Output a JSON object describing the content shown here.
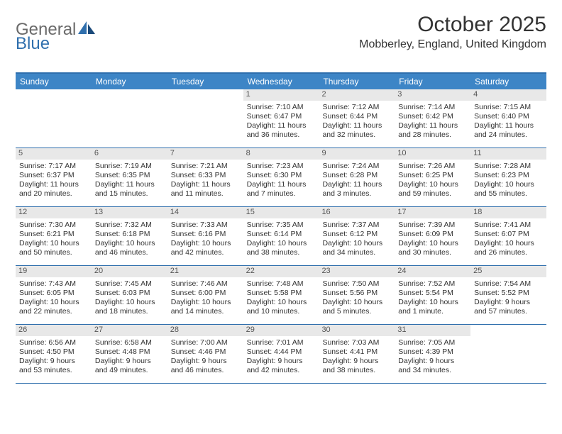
{
  "logo": {
    "general": "General",
    "blue": "Blue",
    "shape_color": "#2f6fad"
  },
  "title": "October 2025",
  "location": "Mobberley, England, United Kingdom",
  "colors": {
    "header_bg": "#3d85c6",
    "border": "#2f6fad",
    "day_num_bg": "#e8e8e8",
    "text": "#333333",
    "header_text": "#ffffff"
  },
  "day_headers": [
    "Sunday",
    "Monday",
    "Tuesday",
    "Wednesday",
    "Thursday",
    "Friday",
    "Saturday"
  ],
  "weeks": [
    [
      {
        "num": "",
        "sunrise": "",
        "sunset": "",
        "daylight": ""
      },
      {
        "num": "",
        "sunrise": "",
        "sunset": "",
        "daylight": ""
      },
      {
        "num": "",
        "sunrise": "",
        "sunset": "",
        "daylight": ""
      },
      {
        "num": "1",
        "sunrise": "Sunrise: 7:10 AM",
        "sunset": "Sunset: 6:47 PM",
        "daylight": "Daylight: 11 hours and 36 minutes."
      },
      {
        "num": "2",
        "sunrise": "Sunrise: 7:12 AM",
        "sunset": "Sunset: 6:44 PM",
        "daylight": "Daylight: 11 hours and 32 minutes."
      },
      {
        "num": "3",
        "sunrise": "Sunrise: 7:14 AM",
        "sunset": "Sunset: 6:42 PM",
        "daylight": "Daylight: 11 hours and 28 minutes."
      },
      {
        "num": "4",
        "sunrise": "Sunrise: 7:15 AM",
        "sunset": "Sunset: 6:40 PM",
        "daylight": "Daylight: 11 hours and 24 minutes."
      }
    ],
    [
      {
        "num": "5",
        "sunrise": "Sunrise: 7:17 AM",
        "sunset": "Sunset: 6:37 PM",
        "daylight": "Daylight: 11 hours and 20 minutes."
      },
      {
        "num": "6",
        "sunrise": "Sunrise: 7:19 AM",
        "sunset": "Sunset: 6:35 PM",
        "daylight": "Daylight: 11 hours and 15 minutes."
      },
      {
        "num": "7",
        "sunrise": "Sunrise: 7:21 AM",
        "sunset": "Sunset: 6:33 PM",
        "daylight": "Daylight: 11 hours and 11 minutes."
      },
      {
        "num": "8",
        "sunrise": "Sunrise: 7:23 AM",
        "sunset": "Sunset: 6:30 PM",
        "daylight": "Daylight: 11 hours and 7 minutes."
      },
      {
        "num": "9",
        "sunrise": "Sunrise: 7:24 AM",
        "sunset": "Sunset: 6:28 PM",
        "daylight": "Daylight: 11 hours and 3 minutes."
      },
      {
        "num": "10",
        "sunrise": "Sunrise: 7:26 AM",
        "sunset": "Sunset: 6:25 PM",
        "daylight": "Daylight: 10 hours and 59 minutes."
      },
      {
        "num": "11",
        "sunrise": "Sunrise: 7:28 AM",
        "sunset": "Sunset: 6:23 PM",
        "daylight": "Daylight: 10 hours and 55 minutes."
      }
    ],
    [
      {
        "num": "12",
        "sunrise": "Sunrise: 7:30 AM",
        "sunset": "Sunset: 6:21 PM",
        "daylight": "Daylight: 10 hours and 50 minutes."
      },
      {
        "num": "13",
        "sunrise": "Sunrise: 7:32 AM",
        "sunset": "Sunset: 6:18 PM",
        "daylight": "Daylight: 10 hours and 46 minutes."
      },
      {
        "num": "14",
        "sunrise": "Sunrise: 7:33 AM",
        "sunset": "Sunset: 6:16 PM",
        "daylight": "Daylight: 10 hours and 42 minutes."
      },
      {
        "num": "15",
        "sunrise": "Sunrise: 7:35 AM",
        "sunset": "Sunset: 6:14 PM",
        "daylight": "Daylight: 10 hours and 38 minutes."
      },
      {
        "num": "16",
        "sunrise": "Sunrise: 7:37 AM",
        "sunset": "Sunset: 6:12 PM",
        "daylight": "Daylight: 10 hours and 34 minutes."
      },
      {
        "num": "17",
        "sunrise": "Sunrise: 7:39 AM",
        "sunset": "Sunset: 6:09 PM",
        "daylight": "Daylight: 10 hours and 30 minutes."
      },
      {
        "num": "18",
        "sunrise": "Sunrise: 7:41 AM",
        "sunset": "Sunset: 6:07 PM",
        "daylight": "Daylight: 10 hours and 26 minutes."
      }
    ],
    [
      {
        "num": "19",
        "sunrise": "Sunrise: 7:43 AM",
        "sunset": "Sunset: 6:05 PM",
        "daylight": "Daylight: 10 hours and 22 minutes."
      },
      {
        "num": "20",
        "sunrise": "Sunrise: 7:45 AM",
        "sunset": "Sunset: 6:03 PM",
        "daylight": "Daylight: 10 hours and 18 minutes."
      },
      {
        "num": "21",
        "sunrise": "Sunrise: 7:46 AM",
        "sunset": "Sunset: 6:00 PM",
        "daylight": "Daylight: 10 hours and 14 minutes."
      },
      {
        "num": "22",
        "sunrise": "Sunrise: 7:48 AM",
        "sunset": "Sunset: 5:58 PM",
        "daylight": "Daylight: 10 hours and 10 minutes."
      },
      {
        "num": "23",
        "sunrise": "Sunrise: 7:50 AM",
        "sunset": "Sunset: 5:56 PM",
        "daylight": "Daylight: 10 hours and 5 minutes."
      },
      {
        "num": "24",
        "sunrise": "Sunrise: 7:52 AM",
        "sunset": "Sunset: 5:54 PM",
        "daylight": "Daylight: 10 hours and 1 minute."
      },
      {
        "num": "25",
        "sunrise": "Sunrise: 7:54 AM",
        "sunset": "Sunset: 5:52 PM",
        "daylight": "Daylight: 9 hours and 57 minutes."
      }
    ],
    [
      {
        "num": "26",
        "sunrise": "Sunrise: 6:56 AM",
        "sunset": "Sunset: 4:50 PM",
        "daylight": "Daylight: 9 hours and 53 minutes."
      },
      {
        "num": "27",
        "sunrise": "Sunrise: 6:58 AM",
        "sunset": "Sunset: 4:48 PM",
        "daylight": "Daylight: 9 hours and 49 minutes."
      },
      {
        "num": "28",
        "sunrise": "Sunrise: 7:00 AM",
        "sunset": "Sunset: 4:46 PM",
        "daylight": "Daylight: 9 hours and 46 minutes."
      },
      {
        "num": "29",
        "sunrise": "Sunrise: 7:01 AM",
        "sunset": "Sunset: 4:44 PM",
        "daylight": "Daylight: 9 hours and 42 minutes."
      },
      {
        "num": "30",
        "sunrise": "Sunrise: 7:03 AM",
        "sunset": "Sunset: 4:41 PM",
        "daylight": "Daylight: 9 hours and 38 minutes."
      },
      {
        "num": "31",
        "sunrise": "Sunrise: 7:05 AM",
        "sunset": "Sunset: 4:39 PM",
        "daylight": "Daylight: 9 hours and 34 minutes."
      },
      {
        "num": "",
        "sunrise": "",
        "sunset": "",
        "daylight": ""
      }
    ]
  ]
}
